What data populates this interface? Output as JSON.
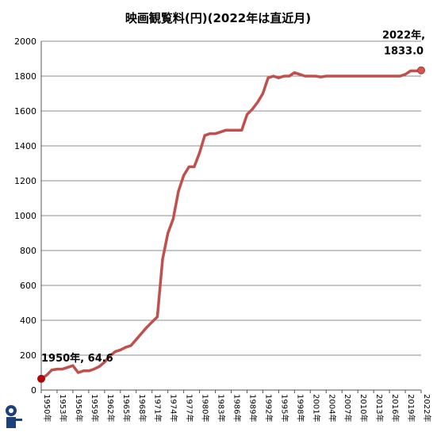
{
  "chart_data": {
    "type": "line",
    "title": "映画観覧料(円)(2022年は直近月)",
    "xlabel": "",
    "ylabel": "",
    "ylim": [
      0,
      2000
    ],
    "yticks": [
      0,
      200,
      400,
      600,
      800,
      1000,
      1200,
      1400,
      1600,
      1800,
      2000
    ],
    "xlim": [
      1950,
      2022
    ],
    "xticks": [
      "1950年",
      "1953年",
      "1956年",
      "1959年",
      "1962年",
      "1965年",
      "1968年",
      "1971年",
      "1974年",
      "1977年",
      "1980年",
      "1983年",
      "1986年",
      "1989年",
      "1992年",
      "1995年",
      "1998年",
      "2001年",
      "2004年",
      "2007年",
      "2010年",
      "2013年",
      "2016年",
      "2019年",
      "2022年"
    ],
    "grid": true,
    "legend": "none",
    "series": [
      {
        "color": "#c0504d",
        "points": [
          [
            1950,
            64.6
          ],
          [
            1951,
            85
          ],
          [
            1952,
            115
          ],
          [
            1953,
            120
          ],
          [
            1954,
            120
          ],
          [
            1955,
            130
          ],
          [
            1956,
            140
          ],
          [
            1957,
            100
          ],
          [
            1958,
            110
          ],
          [
            1959,
            110
          ],
          [
            1960,
            120
          ],
          [
            1961,
            135
          ],
          [
            1962,
            160
          ],
          [
            1963,
            195
          ],
          [
            1964,
            220
          ],
          [
            1965,
            230
          ],
          [
            1966,
            245
          ],
          [
            1967,
            255
          ],
          [
            1968,
            290
          ],
          [
            1969,
            325
          ],
          [
            1970,
            360
          ],
          [
            1971,
            390
          ],
          [
            1972,
            420
          ],
          [
            1973,
            750
          ],
          [
            1974,
            900
          ],
          [
            1975,
            980
          ],
          [
            1976,
            1140
          ],
          [
            1977,
            1230
          ],
          [
            1978,
            1280
          ],
          [
            1979,
            1280
          ],
          [
            1980,
            1360
          ],
          [
            1981,
            1460
          ],
          [
            1982,
            1470
          ],
          [
            1983,
            1470
          ],
          [
            1984,
            1480
          ],
          [
            1985,
            1490
          ],
          [
            1986,
            1490
          ],
          [
            1987,
            1490
          ],
          [
            1988,
            1490
          ],
          [
            1989,
            1580
          ],
          [
            1990,
            1610
          ],
          [
            1991,
            1650
          ],
          [
            1992,
            1700
          ],
          [
            1993,
            1790
          ],
          [
            1994,
            1800
          ],
          [
            1995,
            1790
          ],
          [
            1996,
            1800
          ],
          [
            1997,
            1800
          ],
          [
            1998,
            1820
          ],
          [
            1999,
            1810
          ],
          [
            2000,
            1800
          ],
          [
            2001,
            1800
          ],
          [
            2002,
            1800
          ],
          [
            2003,
            1795
          ],
          [
            2004,
            1800
          ],
          [
            2005,
            1800
          ],
          [
            2006,
            1800
          ],
          [
            2007,
            1800
          ],
          [
            2008,
            1800
          ],
          [
            2009,
            1800
          ],
          [
            2010,
            1800
          ],
          [
            2011,
            1800
          ],
          [
            2012,
            1800
          ],
          [
            2013,
            1800
          ],
          [
            2014,
            1800
          ],
          [
            2015,
            1800
          ],
          [
            2016,
            1800
          ],
          [
            2017,
            1800
          ],
          [
            2018,
            1800
          ],
          [
            2019,
            1810
          ],
          [
            2020,
            1830
          ],
          [
            2021,
            1830
          ],
          [
            2022,
            1833.0
          ]
        ]
      }
    ],
    "annotations": {
      "first_label": "1950年, 64.6",
      "last_label_line1": "2022年,",
      "last_label_line2": "1833.0"
    }
  }
}
